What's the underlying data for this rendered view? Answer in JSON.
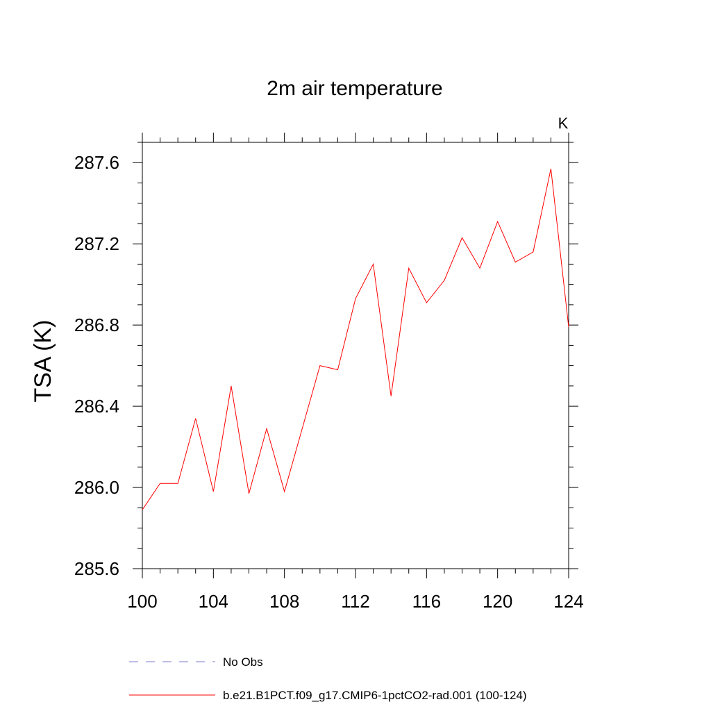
{
  "chart_data": {
    "type": "line",
    "title": "2m air temperature",
    "ylabel": "TSA  (K)",
    "units_label": "K",
    "xlim": [
      100,
      124
    ],
    "ylim": [
      285.6,
      287.7
    ],
    "x_ticks": [
      100,
      104,
      108,
      112,
      116,
      120,
      124
    ],
    "x_tick_labels": [
      "100",
      "104",
      "108",
      "112",
      "116",
      "120",
      "124"
    ],
    "y_ticks": [
      285.6,
      286.0,
      286.4,
      286.8,
      287.2,
      287.6
    ],
    "y_tick_labels": [
      "285.6",
      "286.0",
      "286.4",
      "286.8",
      "287.2",
      "287.6"
    ],
    "grid": false,
    "legend_position": "bottom",
    "series": [
      {
        "name": "b.e21.B1PCT.f09_g17.CMIP6-1pctCO2-rad.001 (100-124)",
        "color": "#ff0000",
        "style": "solid",
        "x": [
          100,
          101,
          102,
          103,
          104,
          105,
          106,
          107,
          108,
          109,
          110,
          111,
          112,
          113,
          114,
          115,
          116,
          117,
          118,
          119,
          120,
          121,
          122,
          123,
          124
        ],
        "values": [
          285.89,
          286.02,
          286.02,
          286.34,
          285.98,
          286.5,
          285.97,
          286.29,
          285.98,
          286.29,
          286.6,
          286.58,
          286.93,
          287.1,
          286.45,
          287.08,
          286.91,
          287.02,
          287.23,
          287.08,
          287.31,
          287.11,
          287.16,
          287.57,
          286.79
        ]
      }
    ],
    "legend": [
      {
        "label": "No Obs",
        "color": "#7b7bcf",
        "style": "dashed"
      },
      {
        "label": "b.e21.B1PCT.f09_g17.CMIP6-1pctCO2-rad.001 (100-124)",
        "color": "#ff0000",
        "style": "solid"
      }
    ]
  }
}
